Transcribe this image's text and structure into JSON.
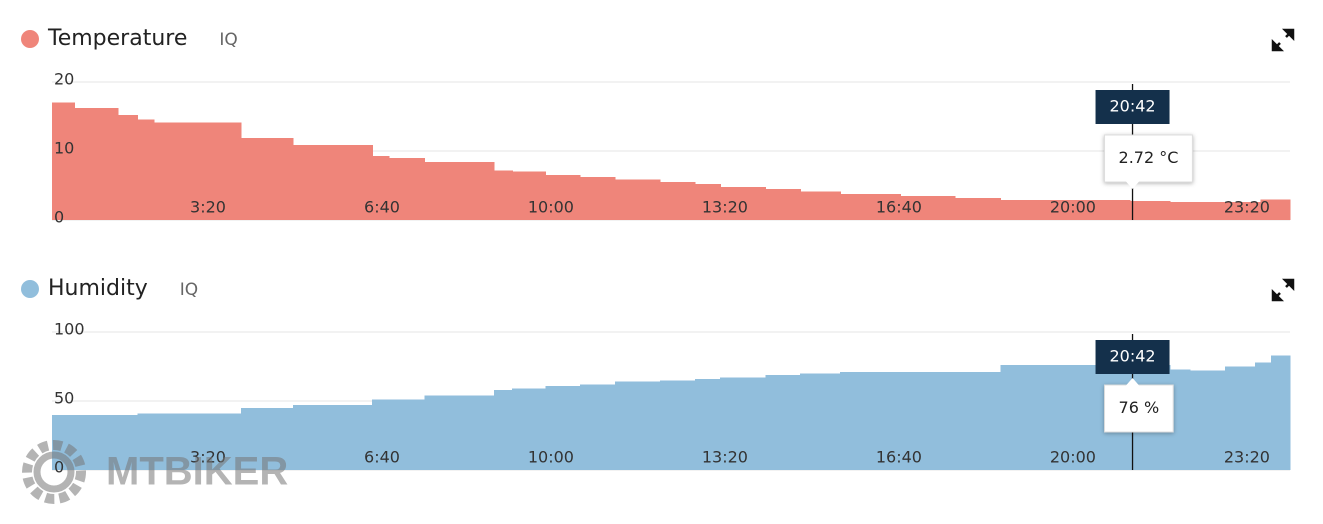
{
  "chart_data": [
    {
      "type": "area",
      "step": true,
      "title": "Temperature",
      "subtitle": "IQ",
      "color": "#ef857a",
      "x": [
        0,
        26,
        76,
        98,
        117,
        217,
        277,
        368,
        387,
        428,
        508,
        529,
        567,
        607,
        647,
        699,
        739,
        768,
        820,
        860,
        906,
        975,
        1038,
        1090,
        1239,
        1285,
        1389
      ],
      "values": [
        17.0,
        16.2,
        15.2,
        14.6,
        14.1,
        11.9,
        10.9,
        9.3,
        9.0,
        8.4,
        7.2,
        7.0,
        6.5,
        6.2,
        5.9,
        5.5,
        5.2,
        4.8,
        4.5,
        4.1,
        3.8,
        3.5,
        3.2,
        2.9,
        2.72,
        2.6,
        3.0
      ],
      "xlim": [
        0,
        1423
      ],
      "xticks": [
        {
          "value": 200,
          "label": "3:20"
        },
        {
          "value": 400,
          "label": "6:40"
        },
        {
          "value": 600,
          "label": "10:00"
        },
        {
          "value": 800,
          "label": "13:20"
        },
        {
          "value": 1000,
          "label": "16:40"
        },
        {
          "value": 1200,
          "label": "20:00"
        },
        {
          "value": 1400,
          "label": "23:20"
        }
      ],
      "ylim": [
        0,
        20
      ],
      "yticks": [
        0,
        10,
        20
      ],
      "grid": true,
      "cursor": {
        "x": {
          "value": 1242,
          "label": "20:42"
        },
        "value": 2.72,
        "value_label": "2.72 °C"
      }
    },
    {
      "type": "area",
      "step": true,
      "title": "Humidity",
      "subtitle": "IQ",
      "color": "#91bedc",
      "x": [
        0,
        98,
        217,
        277,
        368,
        428,
        508,
        529,
        567,
        607,
        647,
        699,
        739,
        768,
        820,
        860,
        906,
        1090,
        1285,
        1308,
        1348,
        1383,
        1401
      ],
      "values": [
        40,
        41,
        45,
        47,
        51,
        54,
        58,
        59,
        61,
        62,
        64,
        65,
        66,
        67,
        69,
        70,
        71,
        76,
        73,
        72,
        75,
        78,
        83
      ],
      "xlim": [
        0,
        1423
      ],
      "xticks": [
        {
          "value": 200,
          "label": "3:20"
        },
        {
          "value": 400,
          "label": "6:40"
        },
        {
          "value": 600,
          "label": "10:00"
        },
        {
          "value": 800,
          "label": "13:20"
        },
        {
          "value": 1000,
          "label": "16:40"
        },
        {
          "value": 1200,
          "label": "20:00"
        },
        {
          "value": 1400,
          "label": "23:20"
        }
      ],
      "ylim": [
        0,
        100
      ],
      "yticks": [
        0,
        50,
        100
      ],
      "grid": true,
      "cursor": {
        "x": {
          "value": 1242,
          "label": "20:42"
        },
        "value": 76,
        "value_label": "76 %"
      }
    }
  ],
  "watermark": "MTBIKER"
}
